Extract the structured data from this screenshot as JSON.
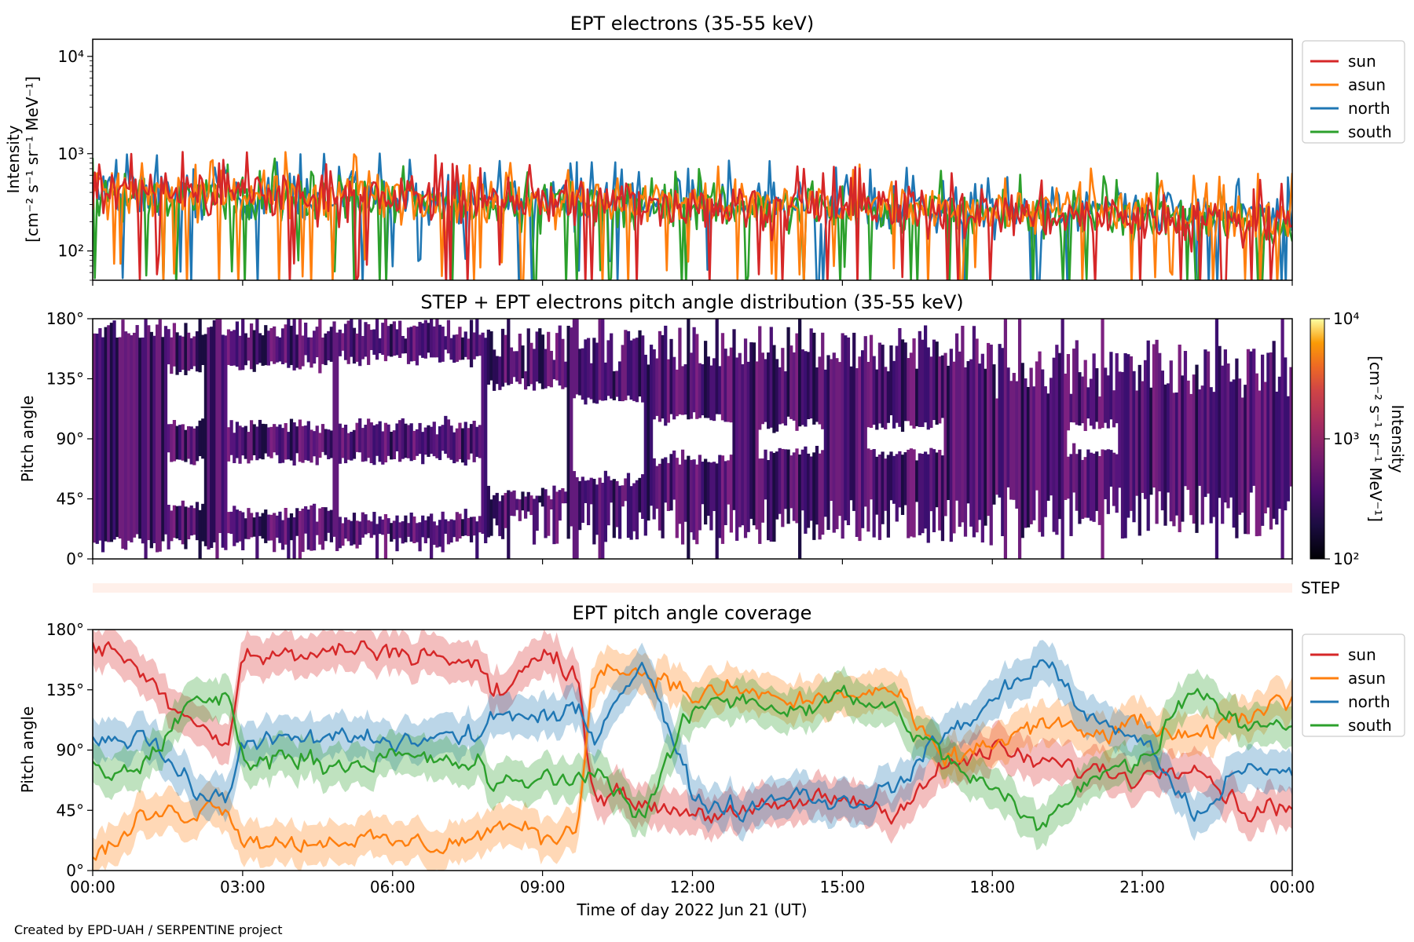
{
  "figure": {
    "credit": "Created by EPD-UAH / SERPENTINE project"
  },
  "chart_data": [
    {
      "type": "line",
      "title": "EPT electrons (35-55 keV)",
      "ylabel_line1": "Intensity",
      "ylabel_line2": "[cm⁻² s⁻¹ sr⁻¹ MeV⁻¹]",
      "yscale": "log",
      "ylim": [
        50,
        15000
      ],
      "yticks": [
        {
          "value": 100,
          "label": "10²"
        },
        {
          "value": 1000,
          "label": "10³"
        },
        {
          "value": 10000,
          "label": "10⁴"
        }
      ],
      "xlim_hours": [
        0,
        24
      ],
      "legend_position": "outside-right-top",
      "series": [
        {
          "name": "sun",
          "color": "#d62728",
          "level_start": 420,
          "level_end": 190
        },
        {
          "name": "asun",
          "color": "#ff7f0e",
          "level_start": 400,
          "level_end": 230
        },
        {
          "name": "north",
          "color": "#1f77b4",
          "level_start": 400,
          "level_end": 230
        },
        {
          "name": "south",
          "color": "#2ca02c",
          "level_start": 380,
          "level_end": 210
        }
      ],
      "draw_order": [
        "north",
        "south",
        "asun",
        "sun"
      ]
    },
    {
      "type": "heatmap",
      "title": "STEP + EPT electrons pitch angle distribution (35-55 keV)",
      "ylabel": "Pitch angle",
      "ylim": [
        0,
        180
      ],
      "yticks": [
        {
          "value": 0,
          "label": "0°"
        },
        {
          "value": 45,
          "label": "45°"
        },
        {
          "value": 90,
          "label": "90°"
        },
        {
          "value": 135,
          "label": "135°"
        },
        {
          "value": 180,
          "label": "180°"
        }
      ],
      "xlim_hours": [
        0,
        24
      ],
      "colorbar": {
        "label_line1": "Intensity",
        "label_line2": "[cm⁻² s⁻¹ sr⁻¹ MeV⁻¹]",
        "scale": "log",
        "range": [
          100,
          10000
        ],
        "ticks": [
          {
            "value": 100,
            "label": "10²"
          },
          {
            "value": 1000,
            "label": "10³"
          },
          {
            "value": 10000,
            "label": "10⁴"
          }
        ],
        "colormap": "inferno"
      },
      "gap_segments": [
        {
          "x0": 1.5,
          "x1": 2.2,
          "gaps": [
            [
              40,
              75
            ],
            [
              100,
              140
            ]
          ]
        },
        {
          "x0": 2.7,
          "x1": 4.8,
          "gaps": [
            [
              35,
              75
            ],
            [
              100,
              145
            ]
          ]
        },
        {
          "x0": 4.9,
          "x1": 7.8,
          "gaps": [
            [
              30,
              75
            ],
            [
              100,
              150
            ]
          ]
        },
        {
          "x0": 7.9,
          "x1": 9.5,
          "gaps": [
            [
              50,
              130
            ]
          ]
        },
        {
          "x0": 9.6,
          "x1": 11.0,
          "gaps": [
            [
              60,
              120
            ]
          ]
        },
        {
          "x0": 11.2,
          "x1": 12.8,
          "gaps": [
            [
              75,
              105
            ]
          ]
        },
        {
          "x0": 13.3,
          "x1": 14.6,
          "gaps": [
            [
              80,
              100
            ]
          ]
        },
        {
          "x0": 15.5,
          "x1": 17.0,
          "gaps": [
            [
              80,
              100
            ]
          ]
        },
        {
          "x0": 19.5,
          "x1": 20.5,
          "gaps": [
            [
              80,
              100
            ]
          ]
        }
      ]
    },
    {
      "type": "bar",
      "label": "STEP",
      "color": "#fff0ea",
      "xlim_hours": [
        0,
        24
      ]
    },
    {
      "type": "area",
      "title": "EPT pitch angle coverage",
      "ylabel": "Pitch angle",
      "xlabel": "Time of day 2022 Jun 21 (UT)",
      "ylim": [
        0,
        180
      ],
      "yticks": [
        {
          "value": 0,
          "label": "0°"
        },
        {
          "value": 45,
          "label": "45°"
        },
        {
          "value": 90,
          "label": "90°"
        },
        {
          "value": 135,
          "label": "135°"
        },
        {
          "value": 180,
          "label": "180°"
        }
      ],
      "xlim_hours": [
        0,
        24
      ],
      "xticks": [
        {
          "value": 0,
          "label": "00:00"
        },
        {
          "value": 3,
          "label": "03:00"
        },
        {
          "value": 6,
          "label": "06:00"
        },
        {
          "value": 9,
          "label": "09:00"
        },
        {
          "value": 12,
          "label": "12:00"
        },
        {
          "value": 15,
          "label": "15:00"
        },
        {
          "value": 18,
          "label": "18:00"
        },
        {
          "value": 21,
          "label": "21:00"
        },
        {
          "value": 24,
          "label": "00:00"
        }
      ],
      "band_halfwidth_deg": 15,
      "legend_position": "outside-right-top",
      "series": [
        {
          "name": "sun",
          "color": "#d62728",
          "x": [
            0,
            0.5,
            1,
            2,
            2.7,
            3,
            4,
            5,
            6,
            7,
            7.8,
            8,
            9,
            9.7,
            10,
            11,
            12,
            13,
            14,
            15,
            16,
            17,
            18,
            19,
            20,
            21,
            22,
            23,
            24
          ],
          "y": [
            170,
            165,
            145,
            115,
            95,
            160,
            160,
            165,
            165,
            160,
            150,
            130,
            160,
            150,
            60,
            50,
            45,
            40,
            50,
            55,
            45,
            75,
            90,
            80,
            75,
            70,
            85,
            45,
            50
          ]
        },
        {
          "name": "asun",
          "color": "#ff7f0e",
          "x": [
            0,
            0.5,
            1,
            2,
            2.7,
            3,
            4,
            5,
            6,
            7,
            7.8,
            8,
            9,
            9.7,
            10,
            11,
            12,
            13,
            14,
            15,
            16,
            17,
            18,
            19,
            20,
            21,
            22,
            23,
            24
          ],
          "y": [
            10,
            20,
            40,
            45,
            50,
            25,
            20,
            25,
            20,
            20,
            25,
            35,
            25,
            30,
            150,
            150,
            130,
            135,
            125,
            130,
            135,
            80,
            95,
            110,
            100,
            110,
            95,
            115,
            130
          ]
        },
        {
          "name": "north",
          "color": "#1f77b4",
          "x": [
            0,
            0.5,
            1,
            2,
            2.7,
            3,
            4,
            5,
            6,
            7,
            7.8,
            8,
            9,
            9.7,
            10,
            11,
            12,
            13,
            14,
            15,
            16,
            17,
            18,
            19,
            20,
            21,
            22,
            23,
            24
          ],
          "y": [
            100,
            100,
            105,
            60,
            50,
            100,
            95,
            100,
            95,
            100,
            100,
            120,
            110,
            120,
            100,
            160,
            55,
            45,
            60,
            50,
            60,
            100,
            125,
            160,
            110,
            100,
            40,
            75,
            70
          ]
        },
        {
          "name": "south",
          "color": "#2ca02c",
          "x": [
            0,
            0.5,
            1,
            2,
            2.7,
            3,
            4,
            5,
            6,
            7,
            7.8,
            8,
            9,
            9.7,
            10,
            11,
            12,
            13,
            14,
            15,
            16,
            17,
            18,
            19,
            20,
            21,
            22,
            23,
            24
          ],
          "y": [
            80,
            70,
            80,
            125,
            130,
            85,
            85,
            80,
            85,
            80,
            80,
            60,
            70,
            65,
            80,
            40,
            120,
            130,
            120,
            130,
            120,
            85,
            60,
            30,
            75,
            80,
            140,
            110,
            110
          ]
        }
      ]
    }
  ]
}
